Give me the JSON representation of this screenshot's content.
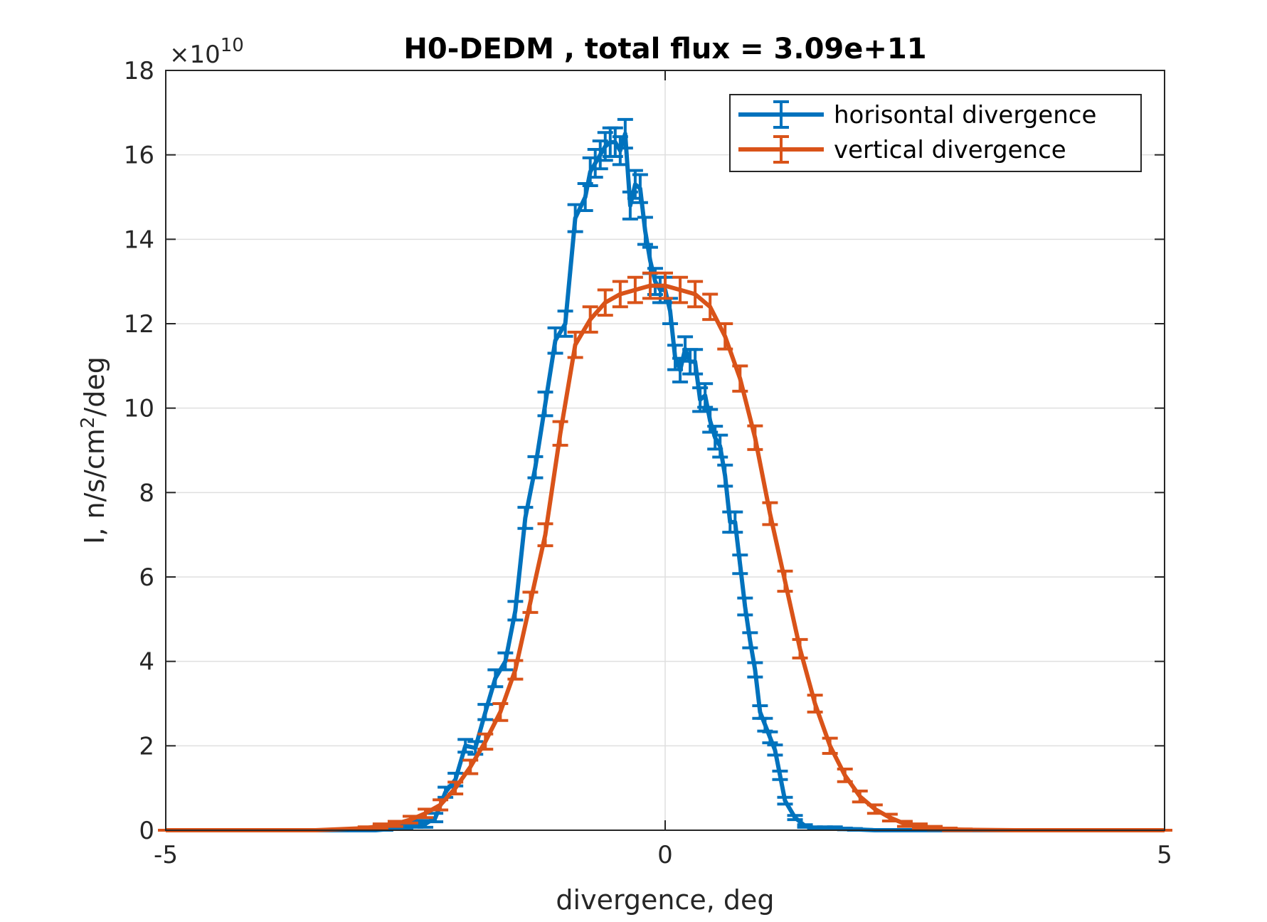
{
  "chart_data": {
    "type": "line",
    "title": "H0-DEDM , total flux =  3.09e+11",
    "xlabel": "divergence, deg",
    "ylabel": "I, n/s/cm",
    "ylabel_sup": "2",
    "ylabel_tail": "/deg",
    "y_multiplier": "×10",
    "y_multiplier_exp": "10",
    "xlim": [
      -5,
      5
    ],
    "ylim": [
      0,
      18
    ],
    "xticks": [
      -5,
      0,
      5
    ],
    "xtick_labels": [
      "-5",
      "0",
      "5"
    ],
    "yticks": [
      0,
      2,
      4,
      6,
      8,
      10,
      12,
      14,
      16,
      18
    ],
    "ytick_labels": [
      "0",
      "2",
      "4",
      "6",
      "8",
      "10",
      "12",
      "14",
      "16",
      "18"
    ],
    "grid": true,
    "legend_position": "top-right",
    "series": [
      {
        "name": "horisontal divergence",
        "color": "#0072BD",
        "x": [
          -5.0,
          -4.0,
          -3.0,
          -2.9,
          -2.8,
          -2.7,
          -2.6,
          -2.5,
          -2.4,
          -2.3,
          -2.2,
          -2.1,
          -2.0,
          -1.9,
          -1.8,
          -1.7,
          -1.6,
          -1.5,
          -1.4,
          -1.3,
          -1.2,
          -1.1,
          -1.0,
          -0.9,
          -0.8,
          -0.75,
          -0.7,
          -0.65,
          -0.6,
          -0.55,
          -0.5,
          -0.45,
          -0.4,
          -0.35,
          -0.3,
          -0.25,
          -0.2,
          -0.15,
          -0.1,
          -0.05,
          0.0,
          0.05,
          0.1,
          0.15,
          0.2,
          0.25,
          0.3,
          0.35,
          0.4,
          0.45,
          0.5,
          0.55,
          0.6,
          0.65,
          0.7,
          0.75,
          0.8,
          0.85,
          0.9,
          0.95,
          1.0,
          1.05,
          1.1,
          1.15,
          1.2,
          1.3,
          1.4,
          1.5,
          1.6,
          1.7,
          1.8,
          1.9,
          2.0,
          2.1,
          2.2,
          2.3,
          2.4,
          2.5,
          2.6,
          2.7,
          2.8,
          2.9,
          3.0,
          4.0,
          5.0
        ],
        "values": [
          0,
          0,
          0,
          0,
          0.02,
          0.05,
          0.1,
          0.15,
          0.15,
          0.3,
          0.9,
          1.2,
          2.0,
          1.95,
          2.8,
          3.6,
          4.0,
          5.2,
          7.4,
          8.6,
          10.1,
          11.6,
          12.0,
          14.5,
          15.0,
          15.6,
          15.8,
          16.0,
          16.2,
          16.3,
          16.3,
          16.1,
          16.5,
          14.8,
          15.3,
          15.2,
          14.2,
          13.5,
          13.0,
          12.8,
          12.8,
          12.3,
          11.2,
          10.9,
          11.4,
          11.1,
          11.1,
          10.2,
          10.3,
          9.7,
          9.3,
          9.1,
          8.4,
          7.3,
          7.3,
          6.3,
          5.3,
          4.5,
          3.8,
          2.8,
          2.5,
          2.2,
          1.9,
          1.3,
          0.7,
          0.3,
          0.1,
          0.05,
          0.05,
          0.05,
          0.03,
          0.02,
          0.01,
          0,
          0,
          0,
          0,
          0,
          0,
          0,
          0,
          0,
          0,
          0,
          0
        ],
        "errors": [
          0,
          0,
          0,
          0,
          0.02,
          0.03,
          0.05,
          0.08,
          0.08,
          0.1,
          0.12,
          0.15,
          0.15,
          0.15,
          0.18,
          0.2,
          0.2,
          0.22,
          0.25,
          0.25,
          0.28,
          0.3,
          0.3,
          0.32,
          0.32,
          0.33,
          0.33,
          0.33,
          0.33,
          0.34,
          0.34,
          0.33,
          0.34,
          0.32,
          0.33,
          0.33,
          0.32,
          0.31,
          0.31,
          0.3,
          0.3,
          0.3,
          0.29,
          0.28,
          0.29,
          0.29,
          0.29,
          0.28,
          0.28,
          0.27,
          0.27,
          0.26,
          0.25,
          0.24,
          0.24,
          0.22,
          0.2,
          0.18,
          0.17,
          0.15,
          0.15,
          0.13,
          0.12,
          0.1,
          0.08,
          0.05,
          0.03,
          0.03,
          0.03,
          0.03,
          0.02,
          0.02,
          0.01,
          0,
          0,
          0,
          0,
          0,
          0,
          0,
          0,
          0,
          0,
          0,
          0
        ]
      },
      {
        "name": "vertical divergence",
        "color": "#D95319",
        "x": [
          -5.0,
          -4.5,
          -4.0,
          -3.5,
          -3.0,
          -2.85,
          -2.7,
          -2.55,
          -2.4,
          -2.25,
          -2.1,
          -1.95,
          -1.8,
          -1.65,
          -1.5,
          -1.35,
          -1.2,
          -1.05,
          -0.9,
          -0.75,
          -0.6,
          -0.45,
          -0.3,
          -0.15,
          0.0,
          0.15,
          0.3,
          0.45,
          0.6,
          0.75,
          0.9,
          1.05,
          1.2,
          1.35,
          1.5,
          1.65,
          1.8,
          1.95,
          2.1,
          2.25,
          2.4,
          2.55,
          2.7,
          2.85,
          3.0,
          3.5,
          4.0,
          4.5,
          5.0
        ],
        "values": [
          0,
          0,
          0,
          0,
          0.05,
          0.1,
          0.15,
          0.25,
          0.4,
          0.6,
          1.0,
          1.5,
          2.1,
          2.8,
          3.8,
          5.4,
          7.0,
          9.4,
          11.5,
          12.1,
          12.5,
          12.7,
          12.8,
          12.9,
          12.9,
          12.8,
          12.7,
          12.4,
          11.7,
          10.7,
          9.3,
          7.5,
          5.9,
          4.3,
          3.0,
          2.0,
          1.3,
          0.8,
          0.5,
          0.3,
          0.15,
          0.1,
          0.05,
          0.02,
          0.01,
          0,
          0,
          0,
          0
        ],
        "errors": [
          0,
          0,
          0,
          0,
          0.03,
          0.05,
          0.06,
          0.08,
          0.1,
          0.12,
          0.14,
          0.16,
          0.18,
          0.2,
          0.22,
          0.24,
          0.26,
          0.28,
          0.3,
          0.3,
          0.3,
          0.3,
          0.3,
          0.3,
          0.3,
          0.3,
          0.3,
          0.3,
          0.3,
          0.3,
          0.28,
          0.26,
          0.24,
          0.22,
          0.2,
          0.18,
          0.15,
          0.13,
          0.1,
          0.08,
          0.06,
          0.05,
          0.04,
          0.03,
          0.02,
          0,
          0,
          0,
          0
        ]
      }
    ]
  }
}
